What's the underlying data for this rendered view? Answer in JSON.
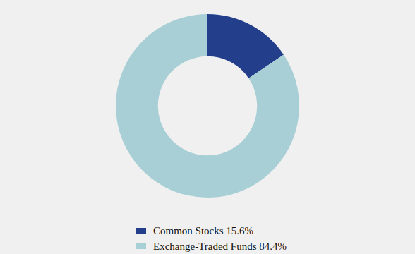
{
  "chart_data": {
    "type": "doughnut",
    "categories": [
      "Common Stocks 15.6%",
      "Exchange-Traded Funds 84.4%"
    ],
    "values": [
      15.6,
      84.4
    ],
    "colors": [
      "#233f8c",
      "#a8cfd6"
    ],
    "legend": "bottom"
  }
}
